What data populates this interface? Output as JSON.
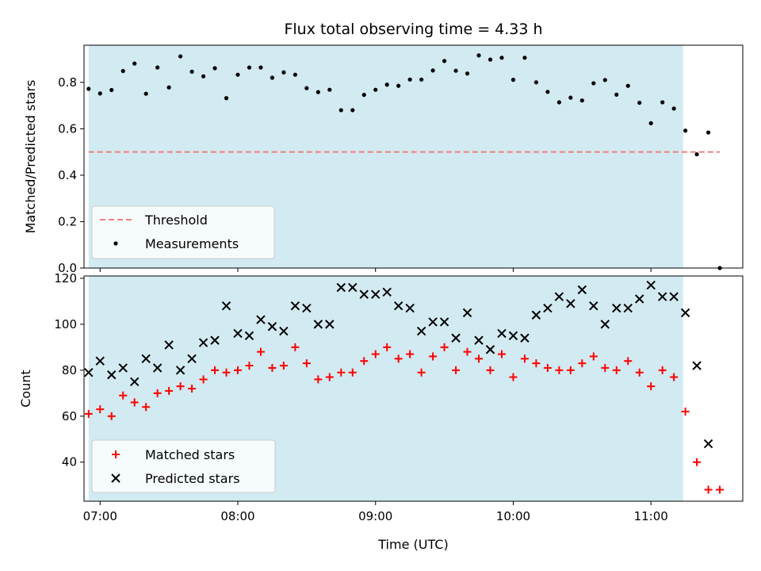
{
  "chart_data": [
    {
      "type": "scatter",
      "title": "Flux total observing time = 4.33 h",
      "ylabel": "Matched/Predicted stars",
      "xlabel": "",
      "xlim": [
        "06:53",
        "11:40"
      ],
      "ylim": [
        0,
        0.96
      ],
      "yticks": [
        "0.0",
        "0.2",
        "0.4",
        "0.6",
        "0.8"
      ],
      "shaded_region": {
        "start": "06:55",
        "end": "11:14",
        "color": "#add8e6"
      },
      "threshold": {
        "name": "Threshold",
        "value": 0.5,
        "x_start": "06:55",
        "x_end": "11:30",
        "color": "#f08080",
        "style": "dashed"
      },
      "legend": {
        "placement": "lower-left",
        "entries": [
          "Threshold",
          "Measurements"
        ]
      },
      "series": [
        {
          "name": "Measurements",
          "color": "#000000",
          "marker": "dot",
          "points": [
            [
              "06:55",
              0.772
            ],
            [
              "07:00",
              0.752
            ],
            [
              "07:05",
              0.767
            ],
            [
              "07:10",
              0.849
            ],
            [
              "07:15",
              0.881
            ],
            [
              "07:20",
              0.751
            ],
            [
              "07:25",
              0.864
            ],
            [
              "07:30",
              0.778
            ],
            [
              "07:35",
              0.912
            ],
            [
              "07:40",
              0.846
            ],
            [
              "07:45",
              0.826
            ],
            [
              "07:50",
              0.861
            ],
            [
              "07:55",
              0.732
            ],
            [
              "08:00",
              0.833
            ],
            [
              "08:05",
              0.864
            ],
            [
              "08:10",
              0.864
            ],
            [
              "08:15",
              0.82
            ],
            [
              "08:20",
              0.843
            ],
            [
              "08:25",
              0.833
            ],
            [
              "08:30",
              0.775
            ],
            [
              "08:35",
              0.758
            ],
            [
              "08:40",
              0.768
            ],
            [
              "08:45",
              0.68
            ],
            [
              "08:50",
              0.68
            ],
            [
              "08:55",
              0.746
            ],
            [
              "09:00",
              0.768
            ],
            [
              "09:05",
              0.79
            ],
            [
              "09:10",
              0.785
            ],
            [
              "09:15",
              0.812
            ],
            [
              "09:20",
              0.812
            ],
            [
              "09:25",
              0.851
            ],
            [
              "09:30",
              0.892
            ],
            [
              "09:35",
              0.85
            ],
            [
              "09:40",
              0.838
            ],
            [
              "09:45",
              0.916
            ],
            [
              "09:50",
              0.898
            ],
            [
              "09:55",
              0.906
            ],
            [
              "10:00",
              0.811
            ],
            [
              "10:05",
              0.906
            ],
            [
              "10:10",
              0.8
            ],
            [
              "10:15",
              0.759
            ],
            [
              "10:20",
              0.714
            ],
            [
              "10:25",
              0.734
            ],
            [
              "10:30",
              0.722
            ],
            [
              "10:35",
              0.796
            ],
            [
              "10:40",
              0.81
            ],
            [
              "10:45",
              0.747
            ],
            [
              "10:50",
              0.785
            ],
            [
              "10:55",
              0.712
            ],
            [
              "11:00",
              0.624
            ],
            [
              "11:05",
              0.714
            ],
            [
              "11:10",
              0.687
            ],
            [
              "11:15",
              0.592
            ],
            [
              "11:20",
              0.49
            ],
            [
              "11:25",
              0.584
            ],
            [
              "11:30",
              0.0
            ]
          ]
        }
      ]
    },
    {
      "type": "scatter",
      "title": "",
      "ylabel": "Count",
      "xlabel": "Time (UTC)",
      "xlim": [
        "06:53",
        "11:40"
      ],
      "ylim": [
        23,
        121
      ],
      "yticks": [
        "40",
        "60",
        "80",
        "100",
        "120"
      ],
      "xticks": [
        "07:00",
        "08:00",
        "09:00",
        "10:00",
        "11:00"
      ],
      "shaded_region": {
        "start": "06:55",
        "end": "11:14",
        "color": "#add8e6"
      },
      "legend": {
        "placement": "lower-left",
        "entries": [
          "Matched stars",
          "Predicted stars"
        ]
      },
      "series": [
        {
          "name": "Matched stars",
          "color": "#ff0000",
          "marker": "plus",
          "points": [
            [
              "06:55",
              61
            ],
            [
              "07:00",
              63
            ],
            [
              "07:05",
              60
            ],
            [
              "07:10",
              69
            ],
            [
              "07:15",
              66
            ],
            [
              "07:20",
              64
            ],
            [
              "07:25",
              70
            ],
            [
              "07:30",
              71
            ],
            [
              "07:35",
              73
            ],
            [
              "07:40",
              72
            ],
            [
              "07:45",
              76
            ],
            [
              "07:50",
              80
            ],
            [
              "07:55",
              79
            ],
            [
              "08:00",
              80
            ],
            [
              "08:05",
              82
            ],
            [
              "08:10",
              88
            ],
            [
              "08:15",
              81
            ],
            [
              "08:20",
              82
            ],
            [
              "08:25",
              90
            ],
            [
              "08:30",
              83
            ],
            [
              "08:35",
              76
            ],
            [
              "08:40",
              77
            ],
            [
              "08:45",
              79
            ],
            [
              "08:50",
              79
            ],
            [
              "08:55",
              84
            ],
            [
              "09:00",
              87
            ],
            [
              "09:05",
              90
            ],
            [
              "09:10",
              85
            ],
            [
              "09:15",
              87
            ],
            [
              "09:20",
              79
            ],
            [
              "09:25",
              86
            ],
            [
              "09:30",
              90
            ],
            [
              "09:35",
              80
            ],
            [
              "09:40",
              88
            ],
            [
              "09:45",
              85
            ],
            [
              "09:50",
              80
            ],
            [
              "09:55",
              87
            ],
            [
              "10:00",
              77
            ],
            [
              "10:05",
              85
            ],
            [
              "10:10",
              83
            ],
            [
              "10:15",
              81
            ],
            [
              "10:20",
              80
            ],
            [
              "10:25",
              80
            ],
            [
              "10:30",
              83
            ],
            [
              "10:35",
              86
            ],
            [
              "10:40",
              81
            ],
            [
              "10:45",
              80
            ],
            [
              "10:50",
              84
            ],
            [
              "10:55",
              79
            ],
            [
              "11:00",
              73
            ],
            [
              "11:05",
              80
            ],
            [
              "11:10",
              77
            ],
            [
              "11:15",
              62
            ],
            [
              "11:20",
              40
            ],
            [
              "11:25",
              28
            ],
            [
              "11:30",
              28
            ]
          ]
        },
        {
          "name": "Predicted stars",
          "color": "#000000",
          "marker": "x",
          "points": [
            [
              "06:55",
              79
            ],
            [
              "07:00",
              84
            ],
            [
              "07:05",
              78
            ],
            [
              "07:10",
              81
            ],
            [
              "07:15",
              75
            ],
            [
              "07:20",
              85
            ],
            [
              "07:25",
              81
            ],
            [
              "07:30",
              91
            ],
            [
              "07:35",
              80
            ],
            [
              "07:40",
              85
            ],
            [
              "07:45",
              92
            ],
            [
              "07:50",
              93
            ],
            [
              "07:55",
              108
            ],
            [
              "08:00",
              96
            ],
            [
              "08:05",
              95
            ],
            [
              "08:10",
              102
            ],
            [
              "08:15",
              99
            ],
            [
              "08:20",
              97
            ],
            [
              "08:25",
              108
            ],
            [
              "08:30",
              107
            ],
            [
              "08:35",
              100
            ],
            [
              "08:40",
              100
            ],
            [
              "08:45",
              116
            ],
            [
              "08:50",
              116
            ],
            [
              "08:55",
              113
            ],
            [
              "09:00",
              113
            ],
            [
              "09:05",
              114
            ],
            [
              "09:10",
              108
            ],
            [
              "09:15",
              107
            ],
            [
              "09:20",
              97
            ],
            [
              "09:25",
              101
            ],
            [
              "09:30",
              101
            ],
            [
              "09:35",
              94
            ],
            [
              "09:40",
              105
            ],
            [
              "09:45",
              93
            ],
            [
              "09:50",
              89
            ],
            [
              "09:55",
              96
            ],
            [
              "10:00",
              95
            ],
            [
              "10:05",
              94
            ],
            [
              "10:10",
              104
            ],
            [
              "10:15",
              107
            ],
            [
              "10:20",
              112
            ],
            [
              "10:25",
              109
            ],
            [
              "10:30",
              115
            ],
            [
              "10:35",
              108
            ],
            [
              "10:40",
              100
            ],
            [
              "10:45",
              107
            ],
            [
              "10:50",
              107
            ],
            [
              "10:55",
              111
            ],
            [
              "11:00",
              117
            ],
            [
              "11:05",
              112
            ],
            [
              "11:10",
              112
            ],
            [
              "11:15",
              105
            ],
            [
              "11:20",
              82
            ],
            [
              "11:25",
              48
            ]
          ]
        }
      ]
    }
  ]
}
